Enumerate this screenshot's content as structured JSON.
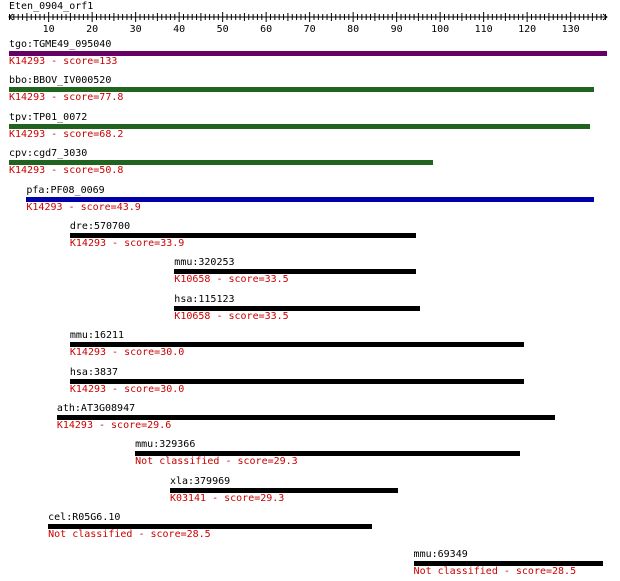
{
  "query": {
    "title": "Eten_0904_orf1",
    "length": 138
  },
  "axis": {
    "ticks": [
      10,
      20,
      30,
      40,
      50,
      60,
      70,
      80,
      90,
      100,
      110,
      120,
      130
    ]
  },
  "hits": [
    {
      "label": "tgo:TGME49_095040",
      "start": 1,
      "end": 138,
      "score_text": "K14293 - score=133",
      "color": "#660066"
    },
    {
      "label": "bbo:BBOV_IV000520",
      "start": 1,
      "end": 135,
      "score_text": "K14293 - score=77.8",
      "color": "#206420"
    },
    {
      "label": "tpv:TP01_0072",
      "start": 1,
      "end": 134,
      "score_text": "K14293 - score=68.2",
      "color": "#206420"
    },
    {
      "label": "cpv:cgd7_3030",
      "start": 1,
      "end": 98,
      "score_text": "K14293 - score=50.8",
      "color": "#206420"
    },
    {
      "label": "pfa:PF08_0069",
      "start": 5,
      "end": 135,
      "score_text": "K14293 - score=43.9",
      "color": "#0000aa"
    },
    {
      "label": "dre:570700",
      "start": 15,
      "end": 94,
      "score_text": "K14293 - score=33.9",
      "color": "#000000"
    },
    {
      "label": "mmu:320253",
      "start": 39,
      "end": 94,
      "score_text": "K10658 - score=33.5",
      "color": "#000000"
    },
    {
      "label": "hsa:115123",
      "start": 39,
      "end": 95,
      "score_text": "K10658 - score=33.5",
      "color": "#000000"
    },
    {
      "label": "mmu:16211",
      "start": 15,
      "end": 119,
      "score_text": "K14293 - score=30.0",
      "color": "#000000"
    },
    {
      "label": "hsa:3837",
      "start": 15,
      "end": 119,
      "score_text": "K14293 - score=30.0",
      "color": "#000000"
    },
    {
      "label": "ath:AT3G08947",
      "start": 12,
      "end": 126,
      "score_text": "K14293 - score=29.6",
      "color": "#000000"
    },
    {
      "label": "mmu:329366",
      "start": 30,
      "end": 118,
      "score_text": "Not classified - score=29.3",
      "color": "#000000"
    },
    {
      "label": "xla:379969",
      "start": 38,
      "end": 90,
      "score_text": "K03141 - score=29.3",
      "color": "#000000"
    },
    {
      "label": "cel:R05G6.10",
      "start": 10,
      "end": 84,
      "score_text": "Not classified - score=28.5",
      "color": "#000000"
    },
    {
      "label": "mmu:69349",
      "start": 94,
      "end": 137,
      "score_text": "Not classified - score=28.5",
      "color": "#000000"
    }
  ]
}
